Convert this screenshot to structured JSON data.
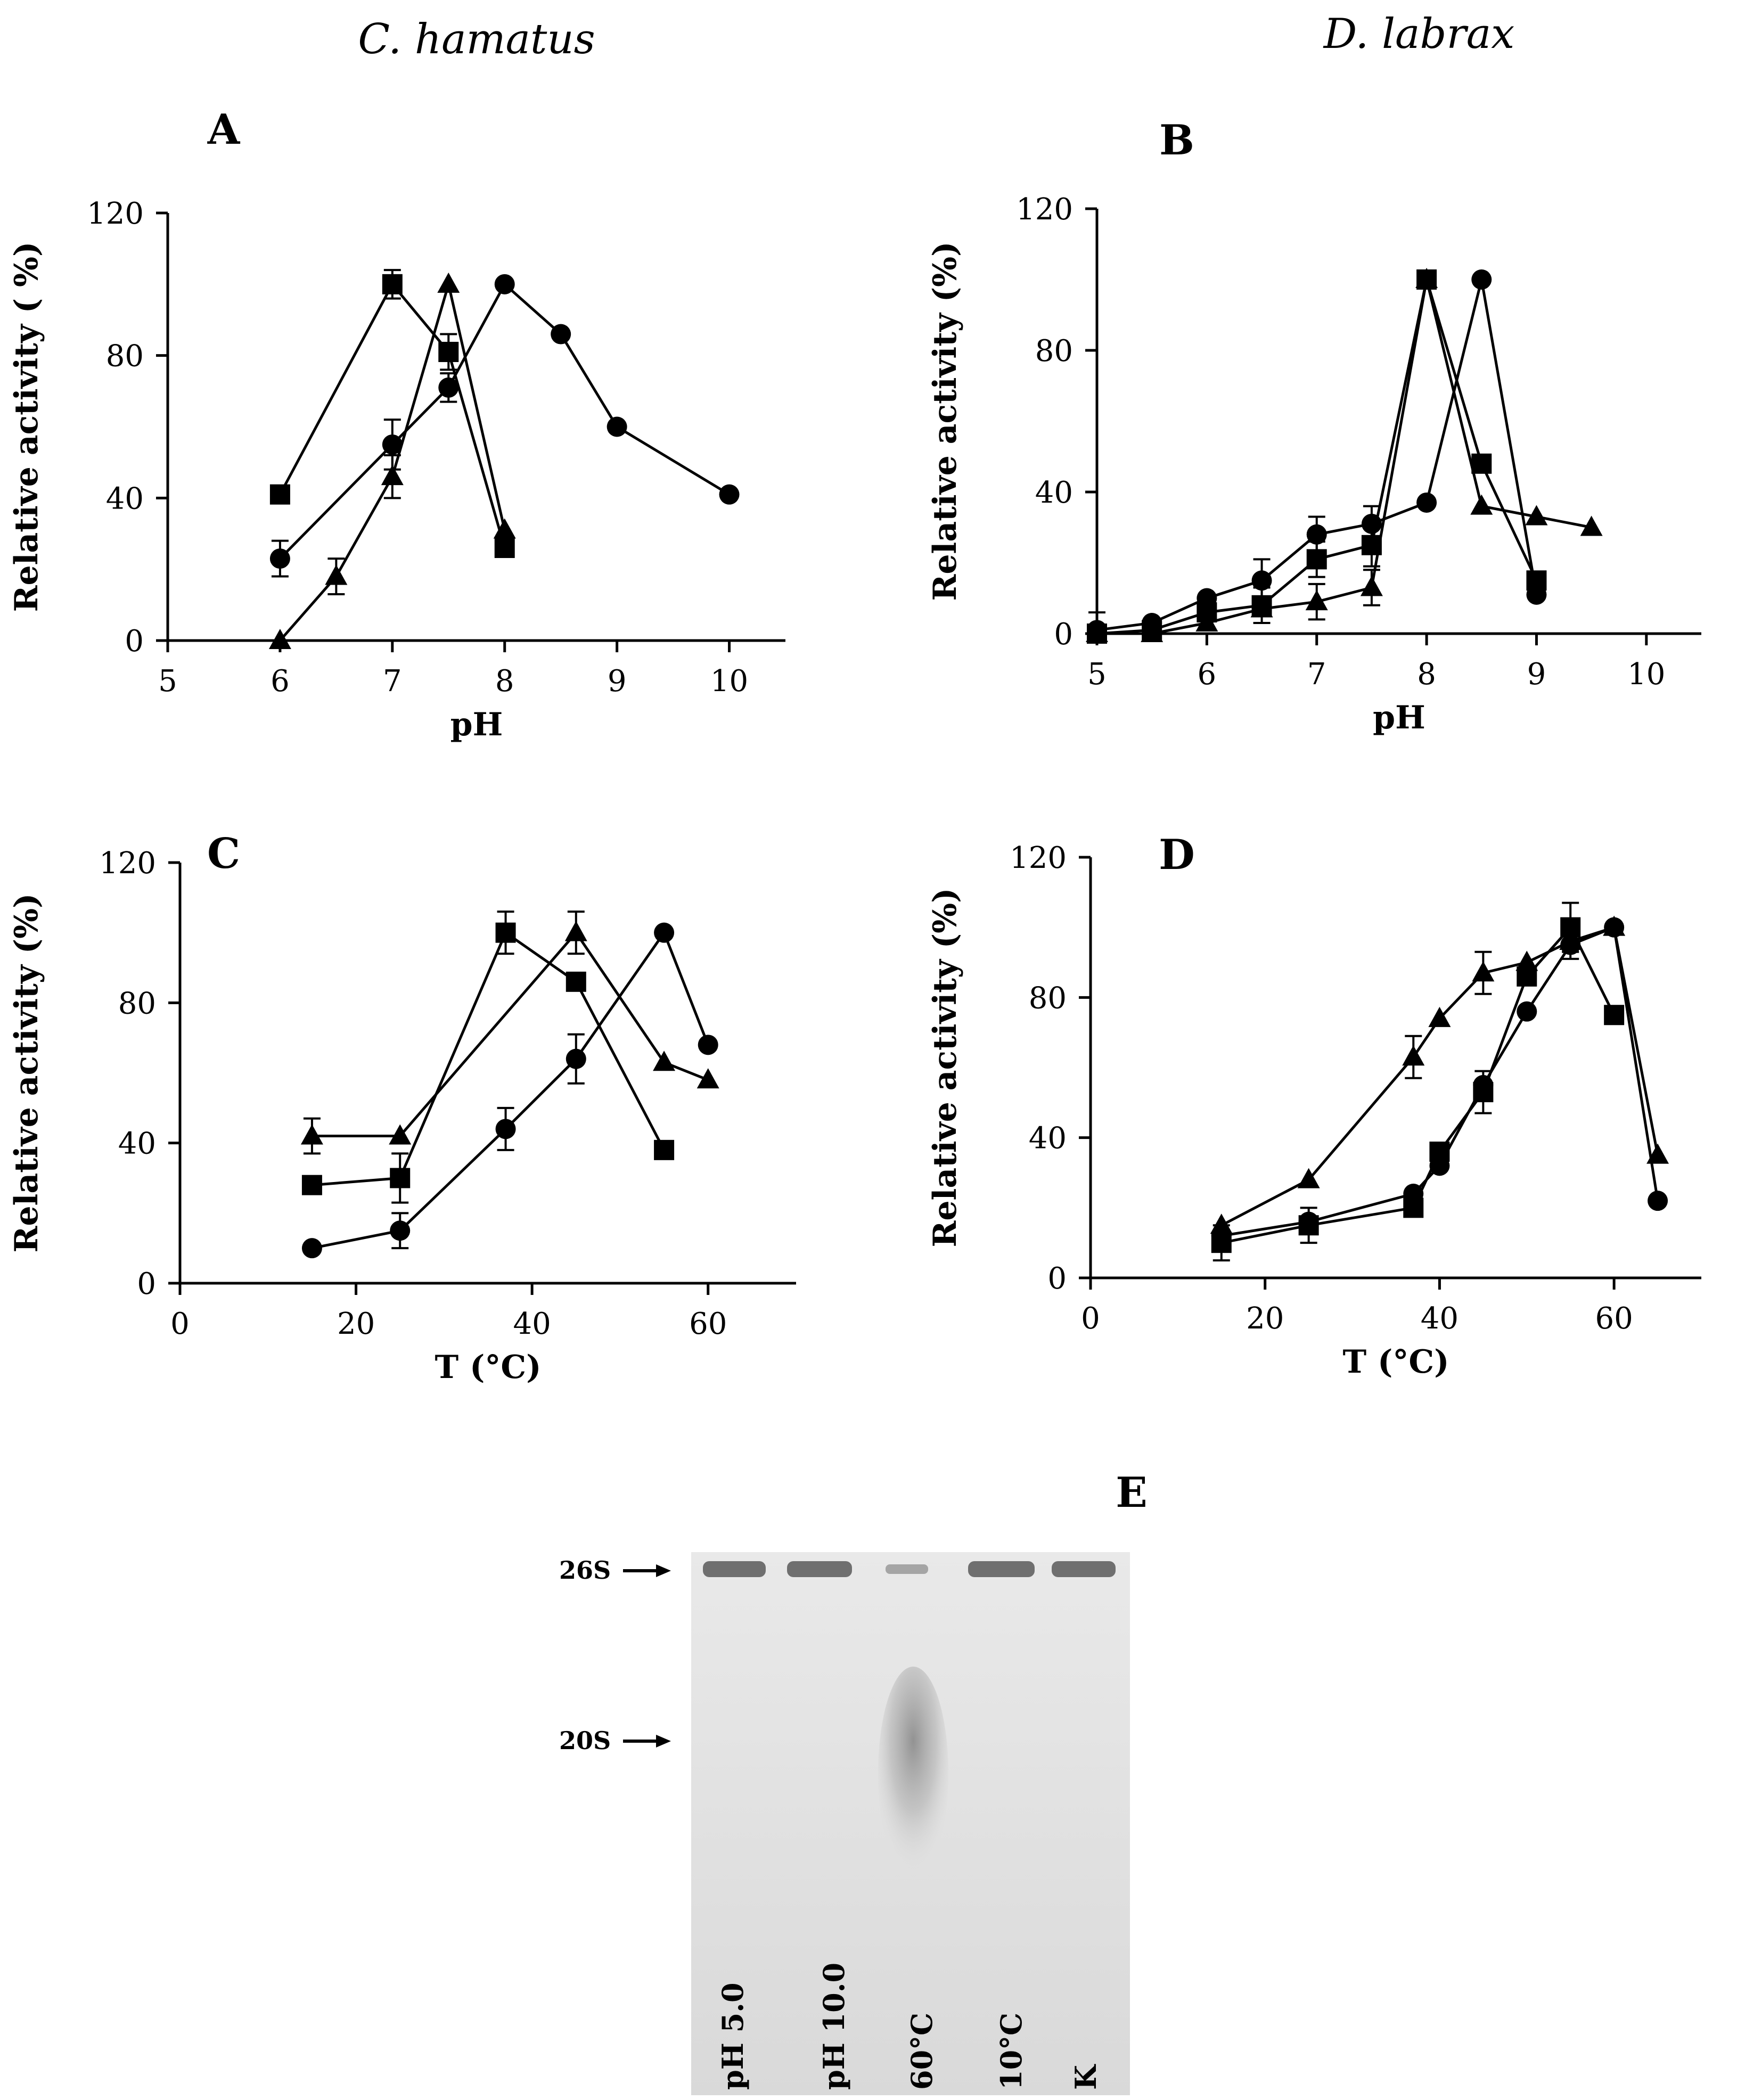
{
  "headers": {
    "left": "C. hamatus",
    "right": "D. labrax"
  },
  "chart_data": [
    {
      "id": "A",
      "type": "line",
      "panel_label": "A",
      "xlabel": "pH",
      "ylabel": "Relative activity ( %)",
      "xlim": [
        5,
        10.5
      ],
      "ylim": [
        0,
        120
      ],
      "xticks": [
        5,
        6,
        7,
        8,
        9,
        10
      ],
      "yticks": [
        0,
        40,
        80,
        120
      ],
      "xtick_labels": [
        "5",
        "6",
        "7",
        "8",
        "9",
        "10"
      ],
      "ytick_labels": [
        "0",
        "40",
        "80",
        "120"
      ],
      "series": [
        {
          "marker": "square",
          "x": [
            6,
            7,
            7.5,
            8
          ],
          "y": [
            41,
            100,
            81,
            26
          ],
          "err": [
            0,
            4,
            5,
            0
          ]
        },
        {
          "marker": "circle",
          "x": [
            6,
            7,
            7.5,
            8,
            8.5,
            9,
            10
          ],
          "y": [
            23,
            55,
            71,
            100,
            86,
            60,
            41
          ],
          "err": [
            5,
            7,
            4,
            0,
            0,
            0,
            0
          ]
        },
        {
          "marker": "triangle",
          "x": [
            6,
            6.5,
            7,
            7.5,
            8
          ],
          "y": [
            0,
            18,
            46,
            100,
            31
          ],
          "err": [
            0,
            5,
            6,
            0,
            0
          ]
        }
      ]
    },
    {
      "id": "B",
      "type": "line",
      "panel_label": "B",
      "xlabel": "pH",
      "ylabel": "Relative activity (%)",
      "xlim": [
        5,
        10.5
      ],
      "ylim": [
        0,
        120
      ],
      "xticks": [
        5,
        6,
        7,
        8,
        9,
        10
      ],
      "yticks": [
        0,
        40,
        80,
        120
      ],
      "xtick_labels": [
        "5",
        "6",
        "7",
        "8",
        "9",
        "10"
      ],
      "ytick_labels": [
        "0",
        "40",
        "80",
        "120"
      ],
      "series": [
        {
          "marker": "circle",
          "x": [
            5,
            5.5,
            6,
            6.5,
            7,
            7.5,
            8,
            8.5,
            9
          ],
          "y": [
            1,
            3,
            10,
            15,
            28,
            31,
            37,
            100,
            11
          ],
          "err": [
            5,
            0,
            0,
            6,
            5,
            5,
            0,
            0,
            0
          ]
        },
        {
          "marker": "square",
          "x": [
            5,
            5.5,
            6,
            6.5,
            7,
            7.5,
            8,
            8.5,
            9
          ],
          "y": [
            0,
            1,
            6,
            8,
            21,
            25,
            100,
            48,
            15
          ],
          "err": [
            0,
            0,
            0,
            5,
            5,
            6,
            0,
            0,
            0
          ]
        },
        {
          "marker": "triangle",
          "x": [
            5,
            5.5,
            6,
            6.5,
            7,
            7.5,
            8,
            8.5,
            9,
            9.5
          ],
          "y": [
            0,
            0,
            3,
            7,
            9,
            13,
            100,
            36,
            33,
            30
          ],
          "err": [
            0,
            0,
            0,
            0,
            5,
            5,
            0,
            0,
            0,
            0
          ]
        }
      ]
    },
    {
      "id": "C",
      "type": "line",
      "panel_label": "C",
      "xlabel": "T (°C)",
      "ylabel": "Relative activity (%)",
      "xlim": [
        0,
        70
      ],
      "ylim": [
        0,
        120
      ],
      "xticks": [
        0,
        20,
        40,
        60
      ],
      "yticks": [
        0,
        40,
        80,
        120
      ],
      "xtick_labels": [
        "0",
        "20",
        "40",
        "60"
      ],
      "ytick_labels": [
        "0",
        "40",
        "80",
        "120"
      ],
      "series": [
        {
          "marker": "triangle",
          "x": [
            15,
            25,
            45,
            55,
            60
          ],
          "y": [
            42,
            42,
            100,
            63,
            58
          ],
          "err": [
            5,
            0,
            6,
            0,
            0
          ]
        },
        {
          "marker": "square",
          "x": [
            15,
            25,
            37,
            45,
            55
          ],
          "y": [
            28,
            30,
            100,
            86,
            38
          ],
          "err": [
            0,
            7,
            6,
            0,
            0
          ]
        },
        {
          "marker": "circle",
          "x": [
            15,
            25,
            37,
            45,
            55,
            60
          ],
          "y": [
            10,
            15,
            44,
            64,
            100,
            68
          ],
          "err": [
            0,
            5,
            6,
            7,
            0,
            0
          ]
        }
      ]
    },
    {
      "id": "D",
      "type": "line",
      "panel_label": "D",
      "xlabel": "T (°C)",
      "ylabel": "Relative  activity (%)",
      "xlim": [
        0,
        70
      ],
      "ylim": [
        0,
        120
      ],
      "xticks": [
        0,
        20,
        40,
        60
      ],
      "yticks": [
        0,
        40,
        80,
        120
      ],
      "xtick_labels": [
        "0",
        "20",
        "40",
        "60"
      ],
      "ytick_labels": [
        "0",
        "40",
        "80",
        "120"
      ],
      "series": [
        {
          "marker": "triangle",
          "x": [
            15,
            25,
            37,
            40,
            45,
            50,
            55,
            60,
            65
          ],
          "y": [
            15,
            28,
            63,
            74,
            87,
            90,
            96,
            100,
            35
          ],
          "err": [
            0,
            0,
            6,
            0,
            6,
            0,
            5,
            0,
            0
          ]
        },
        {
          "marker": "square",
          "x": [
            15,
            25,
            37,
            40,
            45,
            50,
            55,
            60
          ],
          "y": [
            10,
            15,
            20,
            36,
            53,
            86,
            100,
            75
          ],
          "err": [
            5,
            5,
            0,
            0,
            6,
            0,
            7,
            0
          ]
        },
        {
          "marker": "circle",
          "x": [
            15,
            25,
            37,
            40,
            45,
            50,
            55,
            60,
            65
          ],
          "y": [
            12,
            16,
            24,
            32,
            55,
            76,
            95,
            100,
            22
          ],
          "err": [
            0,
            0,
            0,
            0,
            0,
            0,
            0,
            0,
            0
          ]
        }
      ]
    }
  ],
  "gel": {
    "panel_label": "E",
    "band_labels": [
      "26S",
      "20S"
    ],
    "lanes": [
      "pH 5.0",
      "pH 10.0",
      "60°C",
      "10°C",
      "K"
    ]
  }
}
